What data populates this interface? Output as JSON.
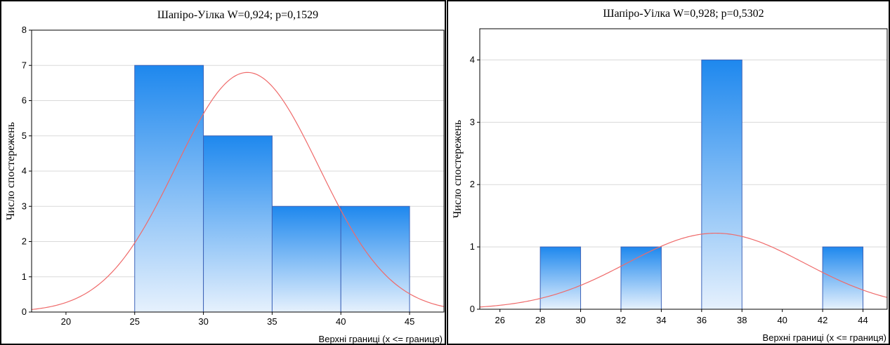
{
  "chart_data": [
    {
      "type": "bar",
      "title": "Шапіро-Уілка W=0,924; p=0,1529",
      "xlabel": "Верхні границі (x <= границя)",
      "ylabel": "Число спостережень",
      "xlim": [
        17.5,
        47.5
      ],
      "ylim": [
        0,
        8
      ],
      "xticks": [
        "20",
        "25",
        "30",
        "35",
        "40",
        "45"
      ],
      "yticks": [
        "0",
        "1",
        "2",
        "3",
        "4",
        "5",
        "6",
        "7",
        "8"
      ],
      "bins": [
        {
          "from": 25,
          "to": 30,
          "count": 7
        },
        {
          "from": 30,
          "to": 35,
          "count": 5
        },
        {
          "from": 35,
          "to": 40,
          "count": 3
        },
        {
          "from": 40,
          "to": 45,
          "count": 3
        }
      ],
      "normal_curve": {
        "mean": 33.2,
        "sd": 5.2,
        "peak": 6.8
      },
      "grid": true
    },
    {
      "type": "bar",
      "title": "Шапіро-Уілка W=0,928; p=0,5302",
      "xlabel": "Верхні границі (x <= границя)",
      "ylabel": "Число спостережень",
      "xlim": [
        25,
        45.2
      ],
      "ylim": [
        0,
        4.5
      ],
      "xticks": [
        "26",
        "28",
        "30",
        "32",
        "34",
        "36",
        "38",
        "40",
        "42",
        "44"
      ],
      "yticks": [
        "0",
        "1",
        "2",
        "3",
        "4"
      ],
      "bins": [
        {
          "from": 28,
          "to": 30,
          "count": 1
        },
        {
          "from": 32,
          "to": 34,
          "count": 1
        },
        {
          "from": 36,
          "to": 38,
          "count": 4
        },
        {
          "from": 42,
          "to": 44,
          "count": 1
        }
      ],
      "normal_curve": {
        "mean": 36.7,
        "sd": 4.4,
        "peak": 1.22
      },
      "grid": true
    }
  ],
  "colors": {
    "bar_top": "#1e88ee",
    "bar_bottom": "#e6f1fd",
    "bar_stroke": "#3d63b8",
    "curve": "#ef6a6a",
    "grid": "#d9d9d9",
    "frame": "#000000"
  }
}
